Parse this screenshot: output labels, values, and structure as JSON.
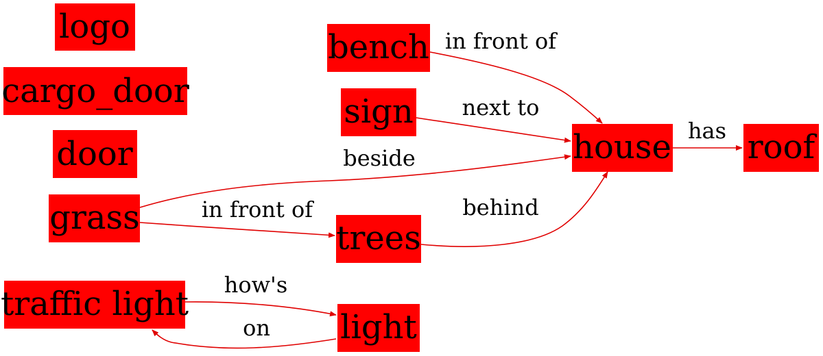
{
  "style": {
    "node_fill": "#ff0000",
    "edge_color": "#e00000",
    "label_color": "#000000",
    "background": "#ffffff"
  },
  "nodes": {
    "logo": "logo",
    "cargo_door": "cargo_door",
    "door": "door",
    "grass": "grass",
    "traffic_light": "traffic light",
    "bench": "bench",
    "sign": "sign",
    "trees": "trees",
    "light": "light",
    "house": "house",
    "roof": "roof"
  },
  "edges": {
    "bench_house": "in front of",
    "sign_house": "next to",
    "grass_house": "beside",
    "grass_trees": "in front of",
    "trees_house": "behind",
    "house_roof": "has",
    "traffic_light_light": "how's",
    "light_traffic_light": "on"
  }
}
